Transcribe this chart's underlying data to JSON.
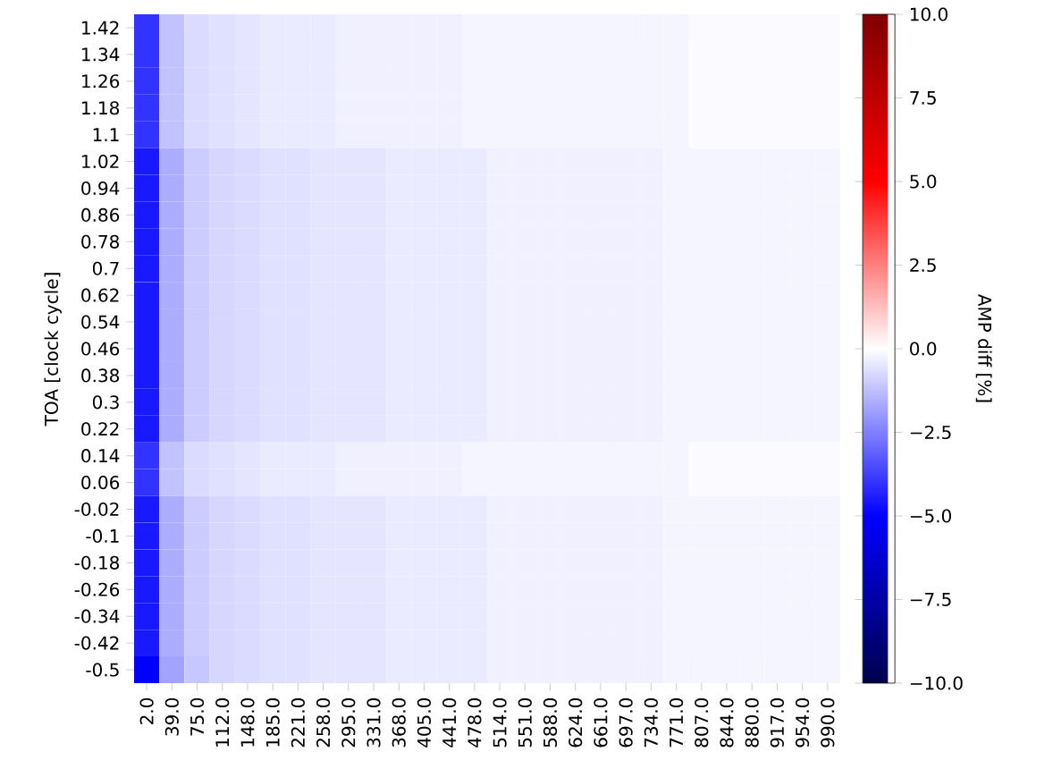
{
  "chart_data": {
    "type": "heatmap",
    "ylabel": "TOA [clock cycle]",
    "clabel": "AMP diff [%]",
    "categories": [
      "2.0",
      "39.0",
      "75.0",
      "112.0",
      "148.0",
      "185.0",
      "221.0",
      "258.0",
      "295.0",
      "331.0",
      "368.0",
      "405.0",
      "441.0",
      "478.0",
      "514.0",
      "551.0",
      "588.0",
      "624.0",
      "661.0",
      "697.0",
      "734.0",
      "771.0",
      "807.0",
      "844.0",
      "880.0",
      "917.0",
      "954.0",
      "990.0"
    ],
    "y_categories": [
      "1.42",
      "1.34",
      "1.26",
      "1.18",
      "1.1",
      "1.02",
      "0.94",
      "0.86",
      "0.78",
      "0.7",
      "0.62",
      "0.54",
      "0.46",
      "0.38",
      "0.3",
      "0.22",
      "0.14",
      "0.06",
      "-0.02",
      "-0.1",
      "-0.18",
      "-0.26",
      "-0.34",
      "-0.42",
      "-0.5"
    ],
    "clim": [
      -10,
      10
    ],
    "cticks": [
      {
        "value": -10,
        "label": "−10.0"
      },
      {
        "value": -7.5,
        "label": "−7.5"
      },
      {
        "value": -5,
        "label": "−5.0"
      },
      {
        "value": -2.5,
        "label": "−2.5"
      },
      {
        "value": 0,
        "label": "0.0"
      },
      {
        "value": 2.5,
        "label": "2.5"
      },
      {
        "value": 5,
        "label": "5.0"
      },
      {
        "value": 7.5,
        "label": "7.5"
      },
      {
        "value": 10,
        "label": "10.0"
      }
    ],
    "cells": [
      [
        -4.0,
        -1.2,
        -0.7,
        -0.6,
        -0.5,
        -0.4,
        -0.4,
        -0.4,
        -0.3,
        -0.3,
        -0.3,
        -0.3,
        -0.3,
        -0.2,
        -0.2,
        -0.2,
        -0.2,
        -0.2,
        -0.2,
        -0.2,
        -0.2,
        -0.2,
        -0.1,
        -0.1,
        -0.1,
        -0.1,
        -0.1,
        -0.1
      ],
      [
        -4.0,
        -1.2,
        -0.7,
        -0.6,
        -0.5,
        -0.4,
        -0.4,
        -0.4,
        -0.3,
        -0.3,
        -0.3,
        -0.3,
        -0.3,
        -0.2,
        -0.2,
        -0.2,
        -0.2,
        -0.2,
        -0.2,
        -0.2,
        -0.2,
        -0.2,
        -0.1,
        -0.1,
        -0.1,
        -0.1,
        -0.1,
        -0.1
      ],
      [
        -4.0,
        -1.2,
        -0.7,
        -0.6,
        -0.5,
        -0.4,
        -0.4,
        -0.4,
        -0.3,
        -0.3,
        -0.3,
        -0.3,
        -0.3,
        -0.2,
        -0.2,
        -0.2,
        -0.2,
        -0.2,
        -0.2,
        -0.2,
        -0.2,
        -0.2,
        -0.1,
        -0.1,
        -0.1,
        -0.1,
        -0.1,
        -0.1
      ],
      [
        -4.0,
        -1.2,
        -0.7,
        -0.6,
        -0.5,
        -0.4,
        -0.4,
        -0.4,
        -0.3,
        -0.3,
        -0.3,
        -0.3,
        -0.3,
        -0.2,
        -0.2,
        -0.2,
        -0.2,
        -0.2,
        -0.2,
        -0.2,
        -0.2,
        -0.2,
        -0.1,
        -0.1,
        -0.1,
        -0.1,
        -0.1,
        -0.1
      ],
      [
        -4.0,
        -1.2,
        -0.7,
        -0.6,
        -0.5,
        -0.4,
        -0.4,
        -0.4,
        -0.3,
        -0.3,
        -0.3,
        -0.3,
        -0.3,
        -0.2,
        -0.2,
        -0.2,
        -0.2,
        -0.2,
        -0.2,
        -0.2,
        -0.2,
        -0.2,
        -0.1,
        -0.1,
        -0.1,
        -0.1,
        -0.1,
        -0.1
      ],
      [
        -4.5,
        -1.6,
        -1.0,
        -0.8,
        -0.7,
        -0.6,
        -0.6,
        -0.5,
        -0.5,
        -0.5,
        -0.4,
        -0.4,
        -0.4,
        -0.4,
        -0.3,
        -0.3,
        -0.3,
        -0.3,
        -0.3,
        -0.3,
        -0.3,
        -0.2,
        -0.2,
        -0.2,
        -0.2,
        -0.2,
        -0.2,
        -0.2
      ],
      [
        -4.5,
        -1.6,
        -1.0,
        -0.8,
        -0.7,
        -0.6,
        -0.6,
        -0.5,
        -0.5,
        -0.5,
        -0.4,
        -0.4,
        -0.4,
        -0.4,
        -0.3,
        -0.3,
        -0.3,
        -0.3,
        -0.3,
        -0.3,
        -0.3,
        -0.2,
        -0.2,
        -0.2,
        -0.2,
        -0.2,
        -0.2,
        -0.2
      ],
      [
        -4.5,
        -1.6,
        -1.0,
        -0.8,
        -0.7,
        -0.6,
        -0.6,
        -0.5,
        -0.5,
        -0.5,
        -0.4,
        -0.4,
        -0.4,
        -0.4,
        -0.3,
        -0.3,
        -0.3,
        -0.3,
        -0.3,
        -0.3,
        -0.3,
        -0.2,
        -0.2,
        -0.2,
        -0.2,
        -0.2,
        -0.2,
        -0.2
      ],
      [
        -4.5,
        -1.6,
        -1.0,
        -0.8,
        -0.7,
        -0.6,
        -0.6,
        -0.5,
        -0.5,
        -0.5,
        -0.4,
        -0.4,
        -0.4,
        -0.4,
        -0.3,
        -0.3,
        -0.3,
        -0.3,
        -0.3,
        -0.3,
        -0.3,
        -0.2,
        -0.2,
        -0.2,
        -0.2,
        -0.2,
        -0.2,
        -0.2
      ],
      [
        -4.5,
        -1.6,
        -1.0,
        -0.8,
        -0.7,
        -0.6,
        -0.6,
        -0.5,
        -0.5,
        -0.5,
        -0.4,
        -0.4,
        -0.4,
        -0.4,
        -0.3,
        -0.3,
        -0.3,
        -0.3,
        -0.3,
        -0.3,
        -0.3,
        -0.2,
        -0.2,
        -0.2,
        -0.2,
        -0.2,
        -0.2,
        -0.2
      ],
      [
        -4.5,
        -1.6,
        -1.0,
        -0.8,
        -0.7,
        -0.6,
        -0.6,
        -0.5,
        -0.5,
        -0.5,
        -0.4,
        -0.4,
        -0.4,
        -0.4,
        -0.3,
        -0.3,
        -0.3,
        -0.3,
        -0.3,
        -0.3,
        -0.3,
        -0.2,
        -0.2,
        -0.2,
        -0.2,
        -0.2,
        -0.2,
        -0.2
      ],
      [
        -4.5,
        -1.6,
        -1.0,
        -0.8,
        -0.7,
        -0.6,
        -0.6,
        -0.5,
        -0.5,
        -0.5,
        -0.4,
        -0.4,
        -0.4,
        -0.4,
        -0.3,
        -0.3,
        -0.3,
        -0.3,
        -0.3,
        -0.3,
        -0.3,
        -0.2,
        -0.2,
        -0.2,
        -0.2,
        -0.2,
        -0.2,
        -0.2
      ],
      [
        -4.5,
        -1.6,
        -1.0,
        -0.8,
        -0.7,
        -0.6,
        -0.6,
        -0.5,
        -0.5,
        -0.5,
        -0.4,
        -0.4,
        -0.4,
        -0.4,
        -0.3,
        -0.3,
        -0.3,
        -0.3,
        -0.3,
        -0.3,
        -0.3,
        -0.2,
        -0.2,
        -0.2,
        -0.2,
        -0.2,
        -0.2,
        -0.2
      ],
      [
        -4.5,
        -1.6,
        -1.0,
        -0.8,
        -0.7,
        -0.6,
        -0.6,
        -0.5,
        -0.5,
        -0.5,
        -0.4,
        -0.4,
        -0.4,
        -0.4,
        -0.3,
        -0.3,
        -0.3,
        -0.3,
        -0.3,
        -0.3,
        -0.3,
        -0.2,
        -0.2,
        -0.2,
        -0.2,
        -0.2,
        -0.2,
        -0.2
      ],
      [
        -4.5,
        -1.6,
        -1.0,
        -0.8,
        -0.7,
        -0.6,
        -0.6,
        -0.5,
        -0.5,
        -0.5,
        -0.4,
        -0.4,
        -0.4,
        -0.4,
        -0.3,
        -0.3,
        -0.3,
        -0.3,
        -0.3,
        -0.3,
        -0.3,
        -0.2,
        -0.2,
        -0.2,
        -0.2,
        -0.2,
        -0.2,
        -0.2
      ],
      [
        -4.5,
        -1.6,
        -1.0,
        -0.8,
        -0.7,
        -0.6,
        -0.6,
        -0.5,
        -0.5,
        -0.5,
        -0.4,
        -0.4,
        -0.4,
        -0.4,
        -0.3,
        -0.3,
        -0.3,
        -0.3,
        -0.3,
        -0.3,
        -0.3,
        -0.2,
        -0.2,
        -0.2,
        -0.2,
        -0.2,
        -0.2,
        -0.2
      ],
      [
        -4.0,
        -1.2,
        -0.7,
        -0.6,
        -0.5,
        -0.4,
        -0.4,
        -0.4,
        -0.3,
        -0.3,
        -0.3,
        -0.3,
        -0.3,
        -0.2,
        -0.2,
        -0.2,
        -0.2,
        -0.2,
        -0.2,
        -0.2,
        -0.2,
        -0.2,
        -0.1,
        -0.1,
        -0.1,
        -0.1,
        -0.1,
        -0.1
      ],
      [
        -4.0,
        -1.2,
        -0.7,
        -0.6,
        -0.5,
        -0.4,
        -0.4,
        -0.4,
        -0.3,
        -0.3,
        -0.3,
        -0.3,
        -0.3,
        -0.2,
        -0.2,
        -0.2,
        -0.2,
        -0.2,
        -0.2,
        -0.2,
        -0.2,
        -0.2,
        -0.1,
        -0.1,
        -0.1,
        -0.1,
        -0.1,
        -0.1
      ],
      [
        -4.5,
        -1.6,
        -1.0,
        -0.8,
        -0.7,
        -0.6,
        -0.6,
        -0.5,
        -0.5,
        -0.5,
        -0.4,
        -0.4,
        -0.4,
        -0.4,
        -0.3,
        -0.3,
        -0.3,
        -0.3,
        -0.3,
        -0.3,
        -0.3,
        -0.2,
        -0.2,
        -0.2,
        -0.2,
        -0.2,
        -0.2,
        -0.2
      ],
      [
        -4.5,
        -1.6,
        -1.0,
        -0.8,
        -0.7,
        -0.6,
        -0.6,
        -0.5,
        -0.5,
        -0.5,
        -0.4,
        -0.4,
        -0.4,
        -0.4,
        -0.3,
        -0.3,
        -0.3,
        -0.3,
        -0.3,
        -0.3,
        -0.3,
        -0.2,
        -0.2,
        -0.2,
        -0.2,
        -0.2,
        -0.2,
        -0.2
      ],
      [
        -4.5,
        -1.6,
        -1.0,
        -0.8,
        -0.7,
        -0.6,
        -0.6,
        -0.5,
        -0.5,
        -0.5,
        -0.4,
        -0.4,
        -0.4,
        -0.4,
        -0.3,
        -0.3,
        -0.3,
        -0.3,
        -0.3,
        -0.3,
        -0.3,
        -0.2,
        -0.2,
        -0.2,
        -0.2,
        -0.2,
        -0.2,
        -0.2
      ],
      [
        -4.5,
        -1.6,
        -1.0,
        -0.8,
        -0.7,
        -0.6,
        -0.6,
        -0.5,
        -0.5,
        -0.5,
        -0.4,
        -0.4,
        -0.4,
        -0.4,
        -0.3,
        -0.3,
        -0.3,
        -0.3,
        -0.3,
        -0.3,
        -0.3,
        -0.2,
        -0.2,
        -0.2,
        -0.2,
        -0.2,
        -0.2,
        -0.2
      ],
      [
        -4.5,
        -1.6,
        -1.0,
        -0.8,
        -0.7,
        -0.6,
        -0.6,
        -0.5,
        -0.5,
        -0.5,
        -0.4,
        -0.4,
        -0.4,
        -0.4,
        -0.3,
        -0.3,
        -0.3,
        -0.3,
        -0.3,
        -0.3,
        -0.3,
        -0.2,
        -0.2,
        -0.2,
        -0.2,
        -0.2,
        -0.2,
        -0.2
      ],
      [
        -4.5,
        -1.6,
        -1.0,
        -0.8,
        -0.7,
        -0.6,
        -0.6,
        -0.5,
        -0.5,
        -0.5,
        -0.4,
        -0.4,
        -0.4,
        -0.4,
        -0.3,
        -0.3,
        -0.3,
        -0.3,
        -0.3,
        -0.3,
        -0.3,
        -0.2,
        -0.2,
        -0.2,
        -0.2,
        -0.2,
        -0.2,
        -0.2
      ],
      [
        -5.0,
        -1.8,
        -1.1,
        -0.8,
        -0.7,
        -0.6,
        -0.6,
        -0.5,
        -0.5,
        -0.5,
        -0.4,
        -0.4,
        -0.4,
        -0.4,
        -0.3,
        -0.3,
        -0.3,
        -0.3,
        -0.3,
        -0.3,
        -0.3,
        -0.2,
        -0.2,
        -0.2,
        -0.2,
        -0.2,
        -0.2,
        -0.2
      ]
    ]
  }
}
